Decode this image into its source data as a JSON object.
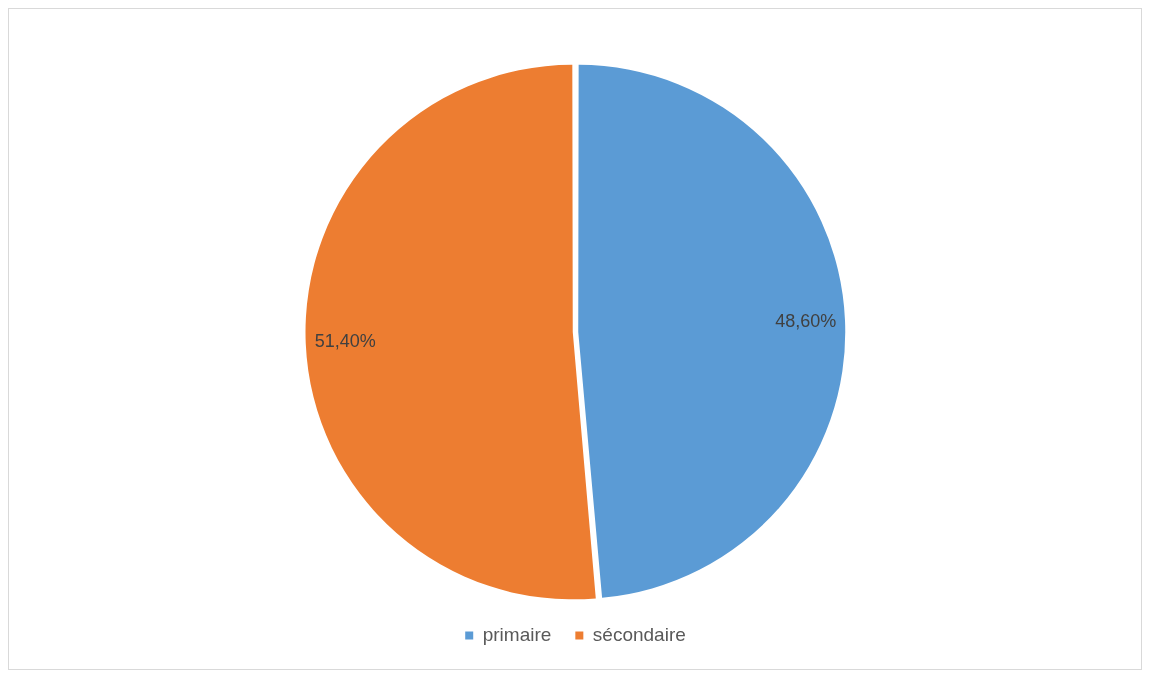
{
  "chart_data": {
    "type": "pie",
    "categories": [
      "primaire",
      "sécondaire"
    ],
    "values": [
      48.6,
      51.4
    ],
    "colors": [
      "#5b9bd5",
      "#ed7d31"
    ],
    "value_labels": [
      "48,60%",
      "51,40%"
    ],
    "legend": "bottom"
  }
}
